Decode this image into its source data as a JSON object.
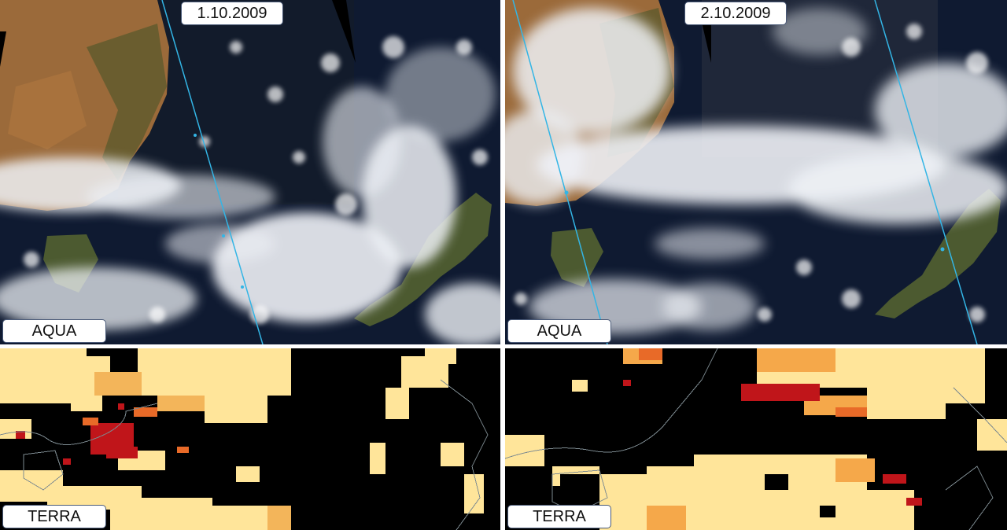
{
  "panels": {
    "top_left": {
      "date": "1.10.2009",
      "satellite": "AQUA"
    },
    "top_right": {
      "date": "2.10.2009",
      "satellite": "AQUA"
    },
    "bottom_left": {
      "satellite": "TERRA"
    },
    "bottom_right": {
      "satellite": "TERRA"
    }
  },
  "colors": {
    "ocean": "#0e1a33",
    "land": "#9b6a3a",
    "vegetation": "#4e5a2c",
    "cloud": "#eef1f6",
    "orbit_track": "#33b5e5",
    "aerosol_background": "#000000",
    "aerosol_low": "#ffe9a0",
    "aerosol_mid": "#f0a040",
    "aerosol_high": "#c0151a",
    "coastline": "#7d8a90",
    "label_border": "#4a5a78"
  }
}
